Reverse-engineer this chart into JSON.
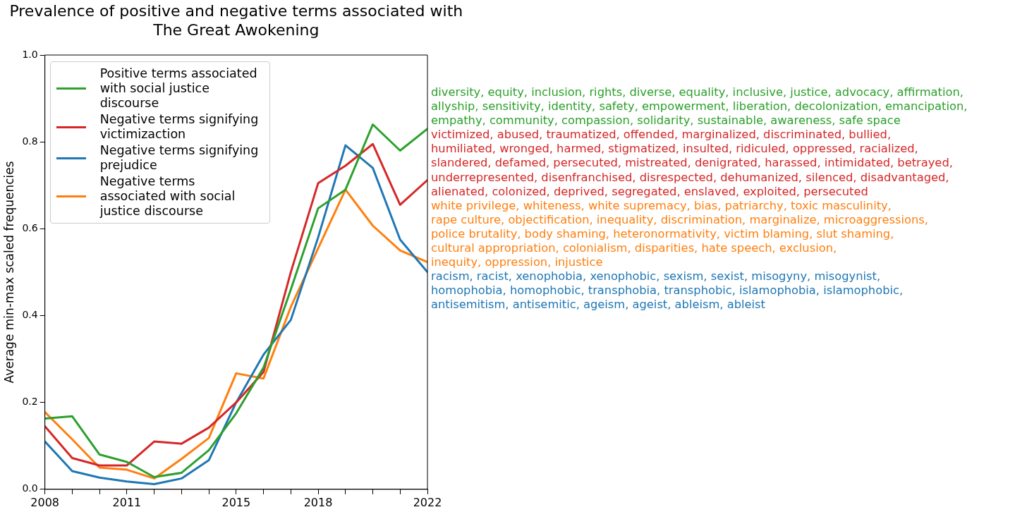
{
  "chart_data": {
    "type": "line",
    "title": "Prevalence of positive and negative terms associated with The Great Awokening",
    "ylabel": "Average min-max scaled frequencies",
    "x": [
      2008,
      2009,
      2010,
      2011,
      2012,
      2013,
      2014,
      2015,
      2016,
      2017,
      2018,
      2019,
      2020,
      2021,
      2022
    ],
    "series": [
      {
        "name": "Positive terms associated with social justice discourse",
        "color": "#2ca02c",
        "values": [
          0.163,
          0.168,
          0.08,
          0.063,
          0.028,
          0.038,
          0.09,
          0.175,
          0.28,
          0.46,
          0.647,
          0.69,
          0.84,
          0.78,
          0.83
        ]
      },
      {
        "name": "Negative terms signifying victimizaction",
        "color": "#d62728",
        "values": [
          0.145,
          0.072,
          0.055,
          0.055,
          0.11,
          0.105,
          0.142,
          0.2,
          0.27,
          0.5,
          0.705,
          0.745,
          0.795,
          0.655,
          0.712
        ]
      },
      {
        "name": "Negative terms signifying prejudice",
        "color": "#1f77b4",
        "values": [
          0.11,
          0.042,
          0.027,
          0.018,
          0.012,
          0.025,
          0.067,
          0.2,
          0.31,
          0.39,
          0.58,
          0.792,
          0.74,
          0.575,
          0.5
        ]
      },
      {
        "name": "Negative terms associated with social justice discourse",
        "color": "#ff7f0e",
        "values": [
          0.178,
          0.115,
          0.05,
          0.045,
          0.025,
          0.07,
          0.118,
          0.267,
          0.255,
          0.42,
          0.555,
          0.69,
          0.607,
          0.55,
          0.523
        ]
      }
    ],
    "xlim": [
      2008,
      2022
    ],
    "xticks": [
      2008,
      {
        "value": 2009,
        "label": null
      },
      {
        "value": 2010,
        "label": null
      },
      2011,
      {
        "value": 2012,
        "label": null
      },
      {
        "value": 2013,
        "label": null
      },
      {
        "value": 2014,
        "label": null
      },
      2015,
      {
        "value": 2016,
        "label": null
      },
      {
        "value": 2017,
        "label": null
      },
      2018,
      {
        "value": 2019,
        "label": null
      },
      {
        "value": 2020,
        "label": null
      },
      {
        "value": 2021,
        "label": null
      },
      2022
    ],
    "ylim": [
      0,
      1
    ],
    "yticks": [
      {
        "value": 0,
        "label": "0.0"
      },
      {
        "value": 0.2,
        "label": "0.2"
      },
      {
        "value": 0.4,
        "label": "0.4"
      },
      {
        "value": 0.6,
        "label": "0.6"
      },
      {
        "value": 0.8,
        "label": "0.8"
      },
      {
        "value": 1,
        "label": "1.0"
      }
    ],
    "legend": "top left",
    "grid": false,
    "marker": "none",
    "line_style": "solid",
    "annotations": [
      "diversity, equity, inclusion, rights, diverse, equality, inclusive, justice, advocacy, affirmation,\nallyship, sensitivity, identity, safety, empowerment, liberation, decolonization, emancipation,\nempathy, community, compassion, solidarity, sustainable, awareness, safe space",
      "victimized, abused, traumatized, offended, marginalized, discriminated, bullied,\nhumiliated, wronged, harmed, stigmatized, insulted, ridiculed, oppressed, racialized,\nslandered, defamed, persecuted, mistreated, denigrated, harassed, intimidated, betrayed,\nunderrepresented, disenfranchised, disrespected, dehumanized, silenced, disadvantaged,\nalienated, colonized, deprived, segregated, enslaved, exploited, persecuted",
      "white privilege, whiteness, white supremacy, bias, patriarchy, toxic masculinity,\nrape culture, objectification, inequality, discrimination, marginalize, microaggressions,\npolice brutality, body shaming, heteronormativity, victim blaming, slut shaming,\ncultural appropriation, colonialism, disparities, hate speech, exclusion,\ninequity, oppression, injustice",
      "racism, racist, xenophobia, xenophobic, sexism, sexist, misogyny, misogynist,\nhomophobia, homophobic, transphobia, transphobic, islamophobia, islamophobic,\nantisemitism, antisemitic, ageism, ageist, ableism, ableist"
    ]
  }
}
